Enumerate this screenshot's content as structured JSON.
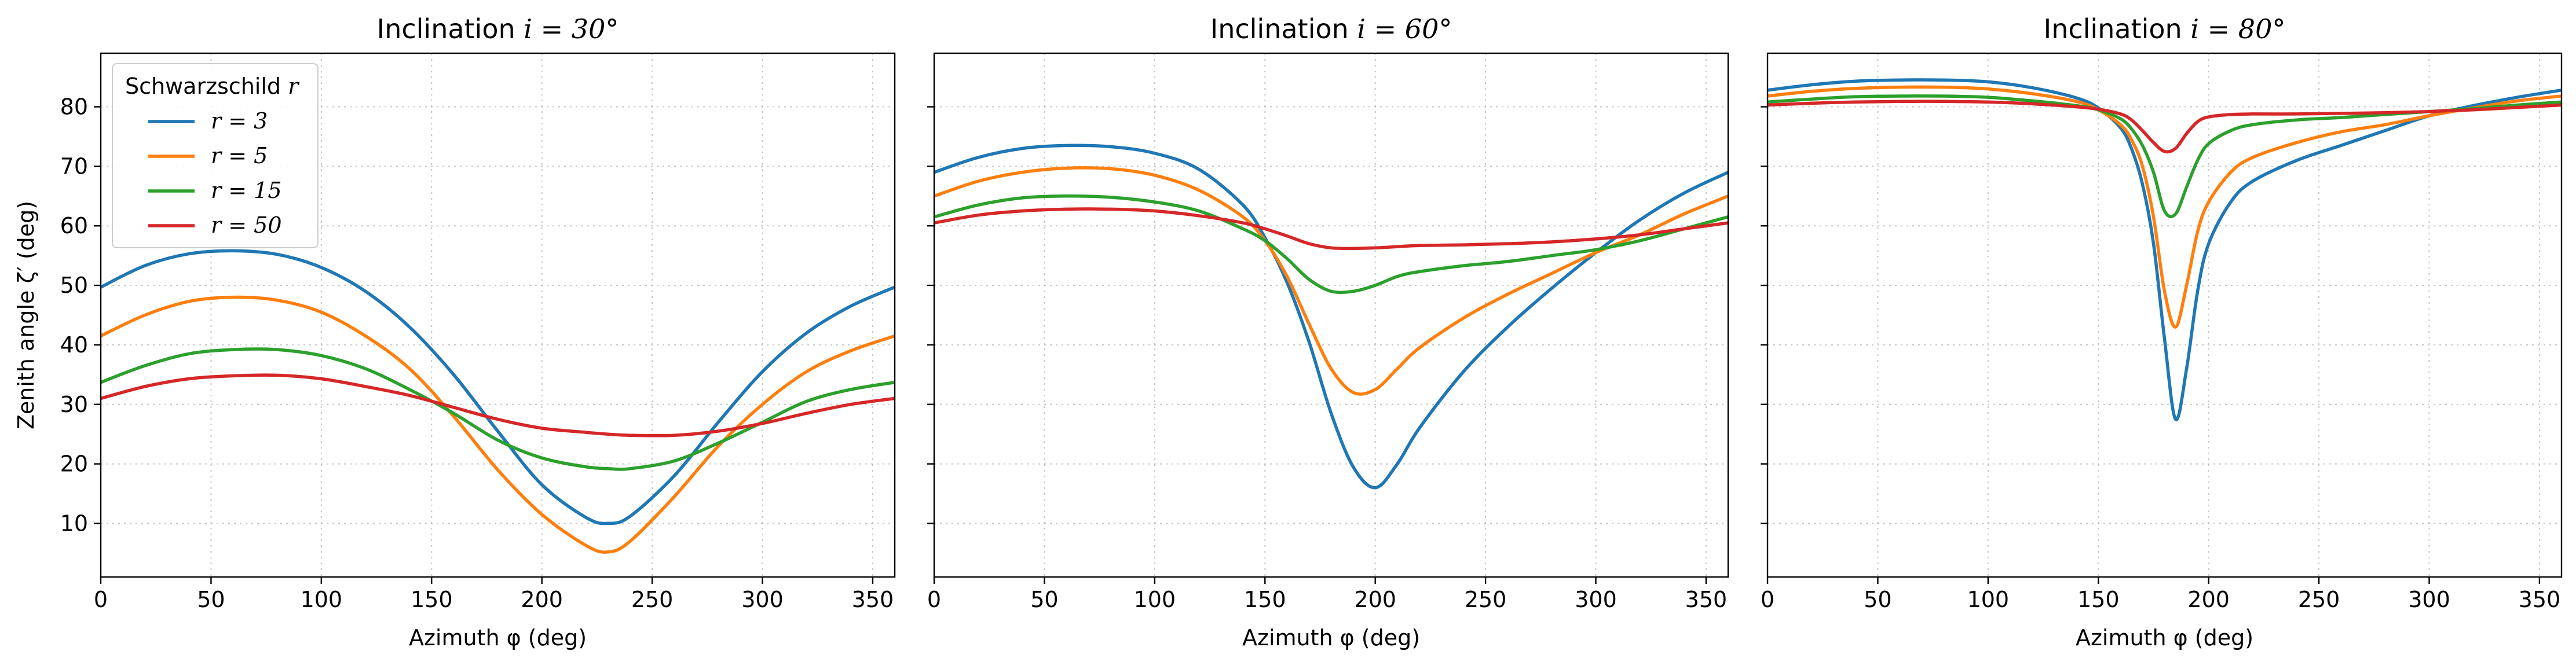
{
  "chart_data": [
    {
      "type": "line",
      "title": "Inclination i = 30°",
      "title_prefix": "Inclination ",
      "title_math": "i = 30°",
      "xlabel": "Azimuth φ (deg)",
      "ylabel": "Zenith angle ζ′ (deg)",
      "xlim": [
        0,
        360
      ],
      "ylim": [
        1,
        89
      ],
      "xticks": [
        0,
        50,
        100,
        150,
        200,
        250,
        300,
        350
      ],
      "yticks": [
        10,
        20,
        30,
        40,
        50,
        60,
        70,
        80
      ],
      "grid": true,
      "legend": {
        "title": "Schwarzschild r",
        "title_prefix": "Schwarzschild ",
        "title_math": "r",
        "placement": "top-left"
      },
      "x": [
        0,
        20,
        40,
        60,
        80,
        100,
        120,
        140,
        160,
        180,
        200,
        220,
        230,
        240,
        260,
        280,
        300,
        320,
        340,
        360
      ],
      "series": [
        {
          "name": "r = 3",
          "color": "#1f77b4",
          "values": [
            49.7,
            53.3,
            55.3,
            55.8,
            55.2,
            53.0,
            49.0,
            43.0,
            35.0,
            25.5,
            16.5,
            11.0,
            10.0,
            11.2,
            18.0,
            27.0,
            35.5,
            42.0,
            46.5,
            49.7
          ]
        },
        {
          "name": "r = 5",
          "color": "#ff7f0e",
          "values": [
            41.5,
            45.0,
            47.3,
            48.0,
            47.5,
            45.5,
            41.5,
            36.0,
            28.0,
            19.0,
            11.5,
            6.3,
            5.2,
            7.0,
            14.5,
            23.0,
            30.0,
            35.5,
            39.0,
            41.5
          ]
        },
        {
          "name": "r = 15",
          "color": "#2ca02c",
          "values": [
            33.7,
            36.5,
            38.5,
            39.2,
            39.2,
            38.2,
            36.0,
            32.5,
            28.5,
            24.0,
            21.0,
            19.5,
            19.2,
            19.2,
            20.5,
            23.5,
            27.0,
            30.5,
            32.5,
            33.7
          ]
        },
        {
          "name": "r = 50",
          "color": "#d62728",
          "values": [
            31.0,
            33.0,
            34.3,
            34.8,
            34.9,
            34.3,
            33.0,
            31.5,
            29.5,
            27.5,
            26.0,
            25.3,
            25.0,
            24.8,
            24.8,
            25.5,
            26.8,
            28.5,
            30.0,
            31.0
          ]
        }
      ]
    },
    {
      "type": "line",
      "title": "Inclination i = 60°",
      "title_prefix": "Inclination ",
      "title_math": "i = 60°",
      "xlabel": "Azimuth φ (deg)",
      "ylabel": "",
      "xlim": [
        0,
        360
      ],
      "ylim": [
        1,
        89
      ],
      "xticks": [
        0,
        50,
        100,
        150,
        200,
        250,
        300,
        350
      ],
      "yticks": [
        10,
        20,
        30,
        40,
        50,
        60,
        70,
        80
      ],
      "grid": true,
      "x": [
        0,
        20,
        40,
        60,
        80,
        100,
        120,
        140,
        150,
        160,
        170,
        180,
        190,
        200,
        210,
        220,
        240,
        260,
        280,
        300,
        320,
        340,
        360
      ],
      "series": [
        {
          "name": "r = 3",
          "color": "#1f77b4",
          "values": [
            69.0,
            71.5,
            73.0,
            73.5,
            73.3,
            72.2,
            69.5,
            63.5,
            58.0,
            50.5,
            40.5,
            28.5,
            19.5,
            16.0,
            20.0,
            26.0,
            35.5,
            43.0,
            49.5,
            55.5,
            61.0,
            65.5,
            69.0
          ]
        },
        {
          "name": "r = 5",
          "color": "#ff7f0e",
          "values": [
            65.0,
            67.5,
            69.0,
            69.7,
            69.6,
            68.5,
            66.0,
            61.5,
            57.5,
            51.5,
            43.5,
            36.0,
            32.0,
            32.5,
            36.0,
            39.5,
            44.5,
            48.5,
            52.0,
            55.5,
            58.5,
            62.0,
            65.0
          ]
        },
        {
          "name": "r = 15",
          "color": "#2ca02c",
          "values": [
            61.5,
            63.5,
            64.7,
            65.0,
            64.8,
            64.0,
            62.5,
            59.5,
            57.5,
            54.5,
            51.0,
            49.0,
            49.0,
            50.0,
            51.5,
            52.3,
            53.3,
            54.0,
            55.0,
            56.0,
            57.5,
            59.5,
            61.5
          ]
        },
        {
          "name": "r = 50",
          "color": "#d62728",
          "values": [
            60.5,
            61.8,
            62.5,
            62.8,
            62.8,
            62.5,
            61.7,
            60.5,
            59.5,
            58.3,
            57.0,
            56.3,
            56.2,
            56.3,
            56.5,
            56.7,
            56.8,
            57.0,
            57.3,
            57.8,
            58.5,
            59.5,
            60.5
          ]
        }
      ]
    },
    {
      "type": "line",
      "title": "Inclination i = 80°",
      "title_prefix": "Inclination ",
      "title_math": "i = 80°",
      "xlabel": "Azimuth φ (deg)",
      "ylabel": "",
      "xlim": [
        0,
        360
      ],
      "ylim": [
        1,
        89
      ],
      "xticks": [
        0,
        50,
        100,
        150,
        200,
        250,
        300,
        350
      ],
      "yticks": [
        10,
        20,
        30,
        40,
        50,
        60,
        70,
        80
      ],
      "grid": true,
      "x": [
        0,
        20,
        40,
        60,
        80,
        100,
        120,
        140,
        150,
        160,
        165,
        170,
        175,
        180,
        185,
        190,
        195,
        200,
        210,
        220,
        240,
        260,
        280,
        300,
        320,
        340,
        360
      ],
      "series": [
        {
          "name": "r = 3",
          "color": "#1f77b4",
          "values": [
            82.8,
            83.7,
            84.3,
            84.5,
            84.5,
            84.2,
            83.2,
            81.5,
            79.8,
            76.5,
            73.0,
            67.0,
            57.0,
            41.0,
            27.5,
            36.0,
            49.0,
            57.0,
            64.0,
            67.5,
            71.0,
            73.5,
            76.0,
            78.5,
            80.2,
            81.6,
            82.8
          ]
        },
        {
          "name": "r = 5",
          "color": "#ff7f0e",
          "values": [
            81.8,
            82.6,
            83.1,
            83.3,
            83.3,
            83.0,
            82.2,
            80.9,
            79.5,
            77.0,
            74.5,
            70.0,
            61.5,
            49.0,
            43.0,
            50.0,
            59.0,
            64.0,
            69.0,
            71.5,
            74.0,
            75.8,
            77.0,
            78.5,
            79.8,
            81.0,
            81.8
          ]
        },
        {
          "name": "r = 15",
          "color": "#2ca02c",
          "values": [
            80.8,
            81.3,
            81.7,
            81.8,
            81.8,
            81.6,
            81.0,
            80.2,
            79.5,
            78.0,
            76.3,
            73.5,
            69.0,
            62.5,
            62.0,
            66.5,
            71.0,
            73.8,
            76.0,
            77.0,
            77.8,
            78.2,
            78.7,
            79.2,
            79.7,
            80.3,
            80.8
          ]
        },
        {
          "name": "r = 50",
          "color": "#d62728",
          "values": [
            80.3,
            80.6,
            80.8,
            80.9,
            80.9,
            80.8,
            80.5,
            80.0,
            79.6,
            78.8,
            77.8,
            76.0,
            74.0,
            72.5,
            73.0,
            75.5,
            77.5,
            78.3,
            78.7,
            78.8,
            78.8,
            78.9,
            79.0,
            79.2,
            79.5,
            79.9,
            80.3
          ]
        }
      ]
    }
  ]
}
